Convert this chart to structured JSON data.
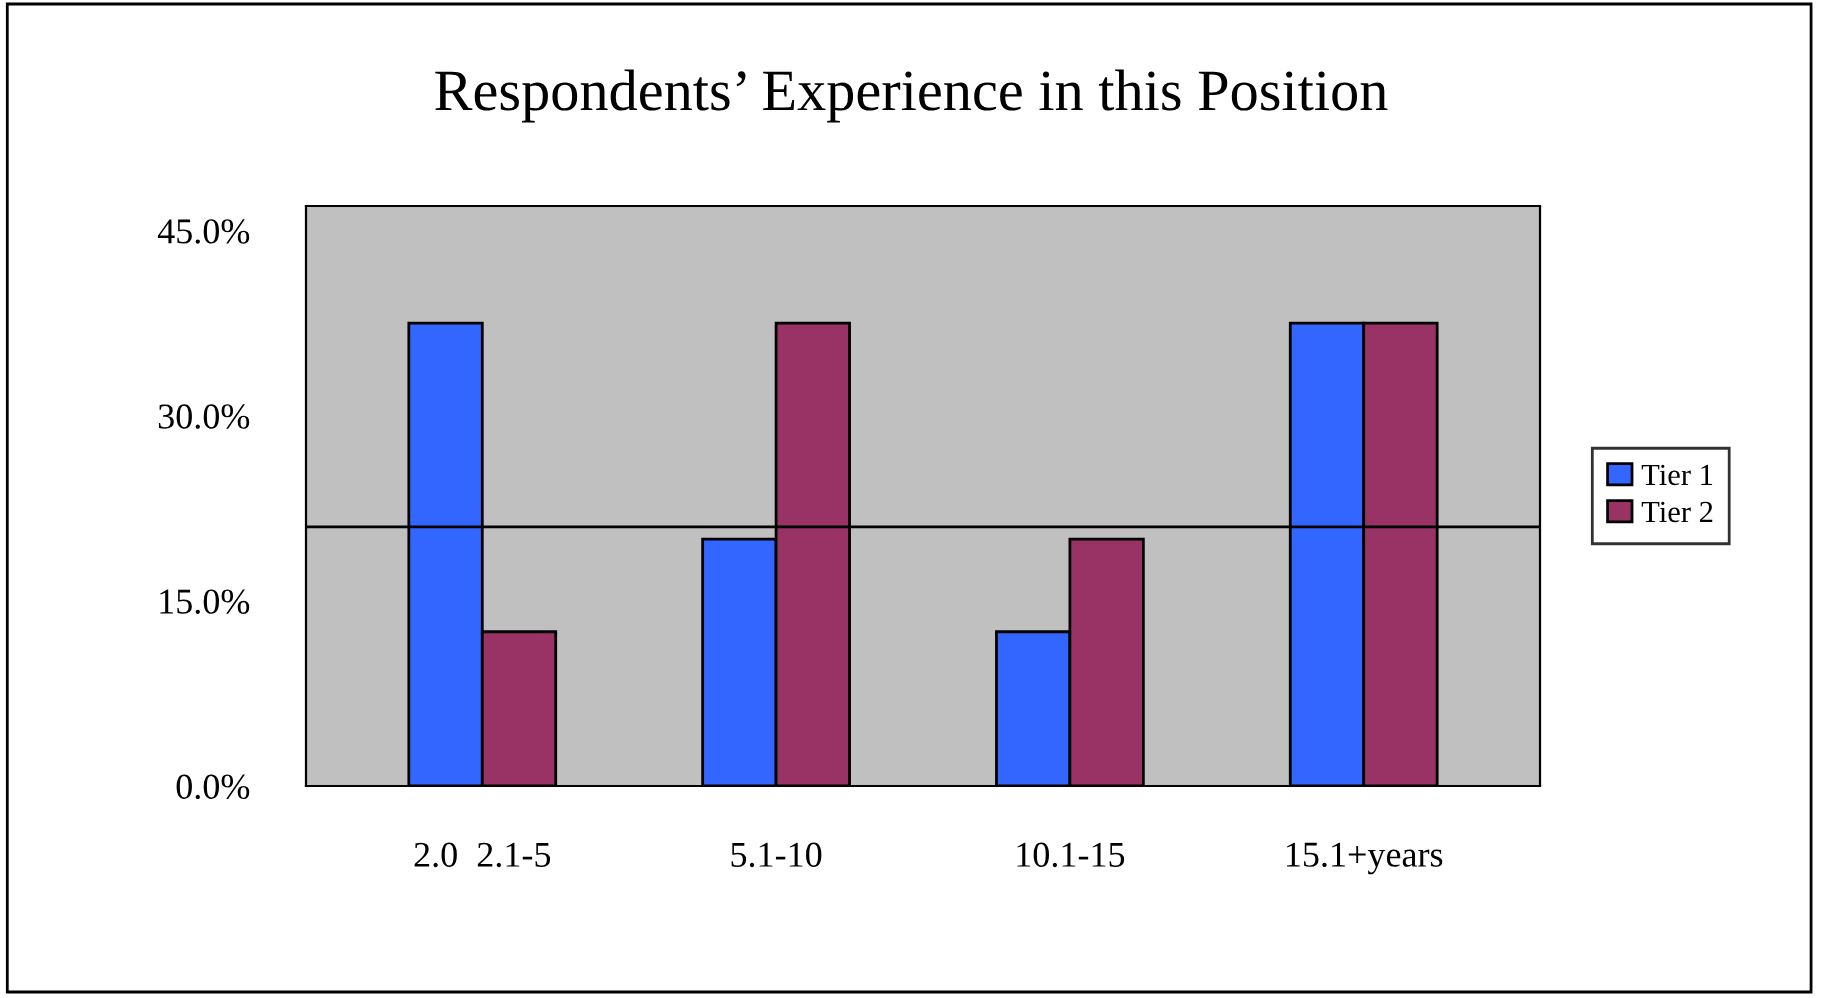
{
  "chart_data": {
    "type": "bar",
    "title": "Respondents’ Experience in this Position",
    "categories": [
      "2.0  2.1-5",
      "5.1-10",
      "10.1-15",
      "15.1+years"
    ],
    "series": [
      {
        "name": "Tier 1",
        "color": "#3366ff",
        "values": [
          37.5,
          20,
          12.5,
          37.5
        ]
      },
      {
        "name": "Tier 2",
        "color": "#993366",
        "values": [
          12.5,
          37.5,
          20,
          37.5
        ]
      }
    ],
    "ylim": [
      0,
      47
    ],
    "yticks": [
      {
        "value": 0,
        "label": "0.0%"
      },
      {
        "value": 15,
        "label": "15.0%"
      },
      {
        "value": 30,
        "label": "30.0%"
      },
      {
        "value": 45,
        "label": "45.0%"
      }
    ],
    "ref_lines": [
      {
        "axis": "y",
        "value": 21,
        "label": null,
        "color": "#000000"
      }
    ],
    "grid": false,
    "legend": "right"
  }
}
